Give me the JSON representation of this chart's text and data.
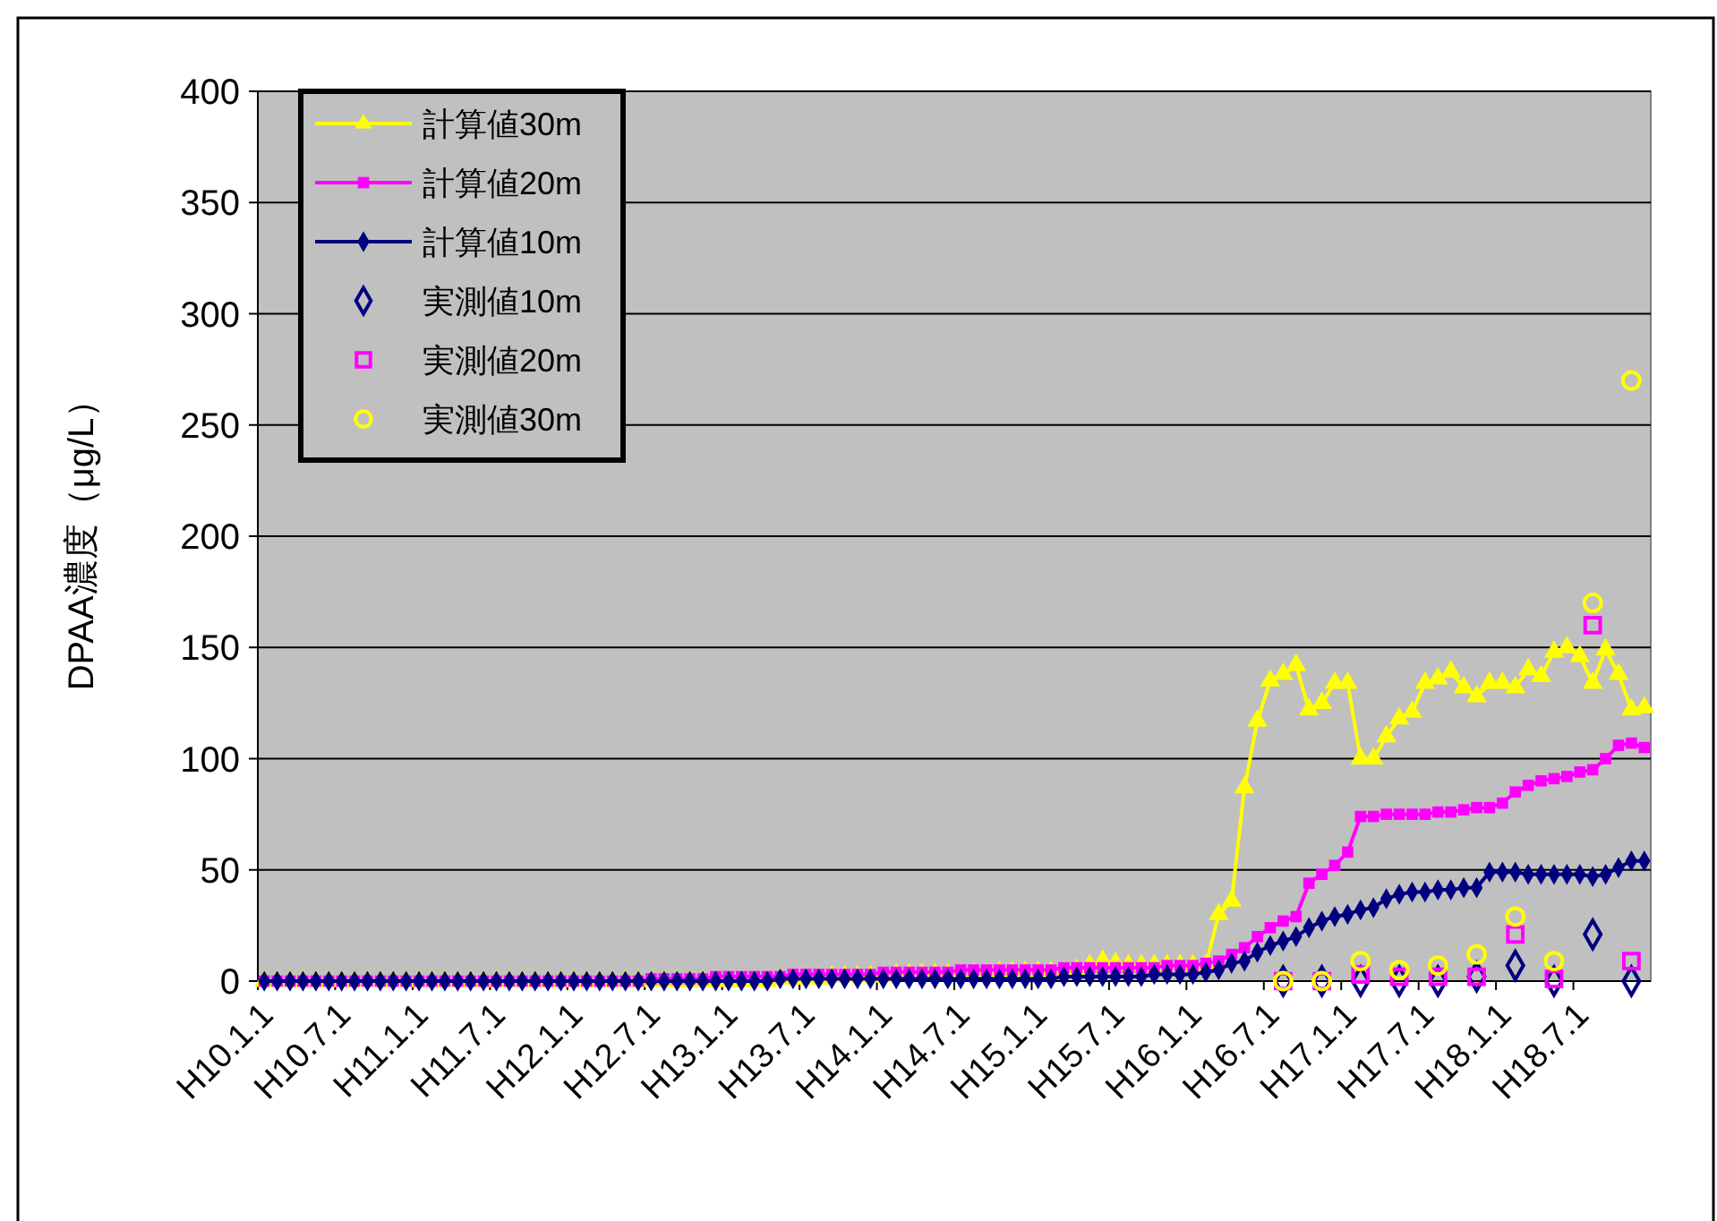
{
  "chart_data": {
    "type": "line",
    "ylabel": "DPAA濃度（μg/L）",
    "categories": [
      "H10.1.1",
      null,
      null,
      null,
      null,
      null,
      "H10.7.1",
      null,
      null,
      null,
      null,
      null,
      "H11.1.1",
      null,
      null,
      null,
      null,
      null,
      "H11.7.1",
      null,
      null,
      null,
      null,
      null,
      "H12.1.1",
      null,
      null,
      null,
      null,
      null,
      "H12.7.1",
      null,
      null,
      null,
      null,
      null,
      "H13.1.1",
      null,
      null,
      null,
      null,
      null,
      "H13.7.1",
      null,
      null,
      null,
      null,
      null,
      "H14.1.1",
      null,
      null,
      null,
      null,
      null,
      "H14.7.1",
      null,
      null,
      null,
      null,
      null,
      "H15.1.1",
      null,
      null,
      null,
      null,
      null,
      "H15.7.1",
      null,
      null,
      null,
      null,
      null,
      "H16.1.1",
      null,
      null,
      null,
      null,
      null,
      "H16.7.1",
      null,
      null,
      null,
      null,
      null,
      "H17.1.1",
      null,
      null,
      null,
      null,
      null,
      "H17.7.1",
      null,
      null,
      null,
      null,
      null,
      "H18.1.1",
      null,
      null,
      null,
      null,
      null,
      "H18.7.1",
      null,
      null,
      null,
      null,
      null
    ],
    "series": [
      {
        "name": "計算値30m",
        "marker": "triangle",
        "color": "#ffff00",
        "values": [
          0,
          0,
          0,
          0,
          0,
          0,
          0,
          0,
          0,
          0,
          0,
          0,
          0,
          0,
          0,
          0,
          0,
          0,
          0,
          0,
          0,
          0,
          0,
          0,
          0,
          0,
          0,
          0,
          0,
          0,
          0,
          0,
          0,
          0,
          0,
          0,
          0,
          0,
          0,
          0,
          1,
          1,
          1,
          1,
          2,
          2,
          2,
          2,
          2,
          3,
          3,
          3,
          3,
          3,
          3,
          3,
          3,
          4,
          4,
          4,
          4,
          4,
          4,
          5,
          7,
          9,
          8,
          7,
          7,
          7,
          7,
          7,
          7,
          7,
          30,
          36,
          87,
          117,
          135,
          138,
          142,
          122,
          125,
          134,
          134,
          100,
          100,
          110,
          118,
          121,
          134,
          136,
          139,
          132,
          128,
          134,
          134,
          132,
          140,
          137,
          148,
          150,
          146,
          134,
          149,
          138,
          122,
          123
        ]
      },
      {
        "name": "計算値20m",
        "marker": "square",
        "color": "#ff00ff",
        "values": [
          0,
          0,
          0,
          0,
          0,
          0,
          0,
          0,
          0,
          0,
          0,
          0,
          0,
          0,
          0,
          0,
          0,
          0,
          0,
          0,
          0,
          0,
          0,
          0,
          0,
          0,
          0,
          0,
          0,
          0,
          1,
          1,
          1,
          1,
          1,
          2,
          2,
          2,
          2,
          2,
          2,
          3,
          3,
          3,
          3,
          3,
          3,
          3,
          4,
          4,
          4,
          4,
          4,
          4,
          5,
          5,
          5,
          5,
          5,
          5,
          5,
          5,
          6,
          6,
          6,
          6,
          6,
          6,
          6,
          6,
          7,
          7,
          7,
          8,
          9,
          12,
          15,
          20,
          24,
          27,
          29,
          44,
          48,
          52,
          58,
          74,
          74,
          75,
          75,
          75,
          75,
          76,
          76,
          77,
          78,
          78,
          80,
          85,
          88,
          90,
          91,
          92,
          94,
          95,
          100,
          106,
          107,
          105
        ]
      },
      {
        "name": "計算値10m",
        "marker": "diamond",
        "color": "#000080",
        "values": [
          0,
          0,
          0,
          0,
          0,
          0,
          0,
          0,
          0,
          0,
          0,
          0,
          0,
          0,
          0,
          0,
          0,
          0,
          0,
          0,
          0,
          0,
          0,
          0,
          0,
          0,
          0,
          0,
          0,
          0,
          0,
          0,
          0,
          0,
          0,
          0,
          0,
          0,
          0,
          0,
          1,
          1,
          1,
          1,
          1,
          1,
          1,
          1,
          1,
          1,
          1,
          1,
          1,
          1,
          1,
          1,
          1,
          1,
          1,
          1,
          1,
          1,
          2,
          2,
          2,
          2,
          2,
          2,
          2,
          3,
          3,
          3,
          3,
          4,
          5,
          8,
          9,
          13,
          16,
          18,
          20,
          24,
          27,
          29,
          30,
          32,
          33,
          37,
          39,
          40,
          40,
          41,
          41,
          42,
          42,
          49,
          49,
          49,
          48,
          48,
          48,
          48,
          48,
          47,
          48,
          51,
          54,
          54
        ]
      },
      {
        "name": "実測値10m",
        "type": "scatter",
        "marker": "diamond",
        "color": "#000080",
        "values": [
          null,
          null,
          null,
          null,
          null,
          null,
          null,
          null,
          null,
          null,
          null,
          null,
          null,
          null,
          null,
          null,
          null,
          null,
          null,
          null,
          null,
          null,
          null,
          null,
          null,
          null,
          null,
          null,
          null,
          null,
          null,
          null,
          null,
          null,
          null,
          null,
          null,
          null,
          null,
          null,
          null,
          null,
          null,
          null,
          null,
          null,
          null,
          null,
          null,
          null,
          null,
          null,
          null,
          null,
          null,
          null,
          null,
          null,
          null,
          null,
          null,
          null,
          null,
          null,
          null,
          null,
          null,
          null,
          null,
          null,
          null,
          null,
          null,
          null,
          null,
          null,
          null,
          null,
          null,
          0,
          null,
          null,
          0,
          null,
          null,
          0,
          null,
          null,
          0,
          null,
          null,
          0,
          null,
          null,
          2,
          null,
          null,
          7,
          null,
          null,
          0,
          null,
          null,
          21,
          null,
          null,
          0,
          null
        ]
      },
      {
        "name": "実測値20m",
        "type": "scatter",
        "marker": "square",
        "color": "#ff00ff",
        "values": [
          null,
          null,
          null,
          null,
          null,
          null,
          null,
          null,
          null,
          null,
          null,
          null,
          null,
          null,
          null,
          null,
          null,
          null,
          null,
          null,
          null,
          null,
          null,
          null,
          null,
          null,
          null,
          null,
          null,
          null,
          null,
          null,
          null,
          null,
          null,
          null,
          null,
          null,
          null,
          null,
          null,
          null,
          null,
          null,
          null,
          null,
          null,
          null,
          null,
          null,
          null,
          null,
          null,
          null,
          null,
          null,
          null,
          null,
          null,
          null,
          null,
          null,
          null,
          null,
          null,
          null,
          null,
          null,
          null,
          null,
          null,
          null,
          null,
          null,
          null,
          null,
          null,
          null,
          null,
          0,
          null,
          null,
          0,
          null,
          null,
          3,
          null,
          null,
          2,
          null,
          null,
          2,
          null,
          null,
          2,
          null,
          null,
          21,
          null,
          null,
          1,
          null,
          null,
          160,
          null,
          null,
          9,
          null
        ]
      },
      {
        "name": "実測値30m",
        "type": "scatter",
        "marker": "circle",
        "color": "#ffff00",
        "values": [
          null,
          null,
          null,
          null,
          null,
          null,
          null,
          null,
          null,
          null,
          null,
          null,
          null,
          null,
          null,
          null,
          null,
          null,
          null,
          null,
          null,
          null,
          null,
          null,
          null,
          null,
          null,
          null,
          null,
          null,
          null,
          null,
          null,
          null,
          null,
          null,
          null,
          null,
          null,
          null,
          null,
          null,
          null,
          null,
          null,
          null,
          null,
          null,
          null,
          null,
          null,
          null,
          null,
          null,
          null,
          null,
          null,
          null,
          null,
          null,
          null,
          null,
          null,
          null,
          null,
          null,
          null,
          null,
          null,
          null,
          null,
          null,
          null,
          null,
          null,
          null,
          null,
          null,
          null,
          0,
          null,
          null,
          0,
          null,
          null,
          9,
          null,
          null,
          5,
          null,
          null,
          7,
          null,
          null,
          12,
          null,
          null,
          29,
          null,
          null,
          9,
          null,
          null,
          170,
          null,
          null,
          270,
          null
        ]
      }
    ],
    "ylim": [
      0,
      400
    ],
    "yticks": [
      0,
      50,
      100,
      150,
      200,
      250,
      300,
      350,
      400
    ],
    "grid": "y",
    "legend": "top left"
  }
}
